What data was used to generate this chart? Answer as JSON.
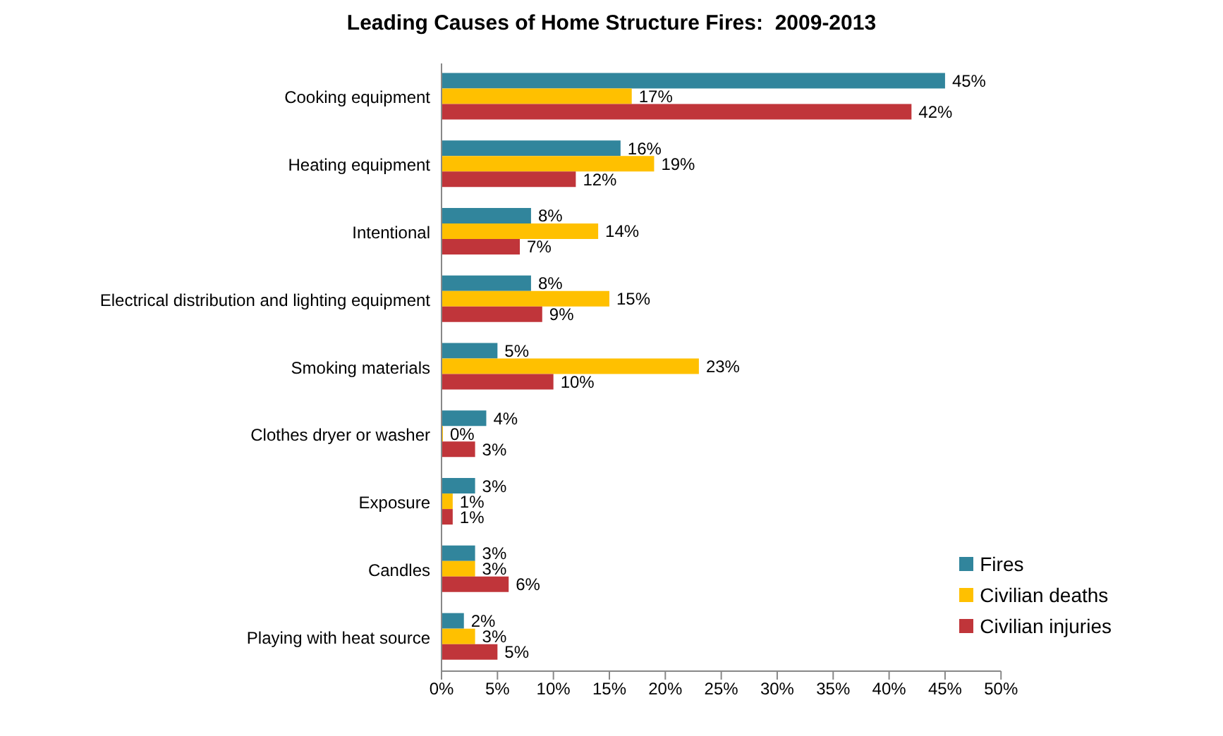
{
  "chart_data": {
    "type": "bar",
    "orientation": "horizontal",
    "title": "Leading Causes of Home Structure Fires:  2009-2013",
    "categories": [
      "Cooking equipment",
      "Heating equipment",
      "Intentional",
      "Electrical distribution and lighting equipment",
      "Smoking materials",
      "Clothes dryer or washer",
      "Exposure",
      "Candles",
      "Playing with heat source"
    ],
    "series": [
      {
        "name": "Fires",
        "color": "#31859c",
        "values": [
          45,
          16,
          8,
          8,
          5,
          4,
          3,
          3,
          2
        ],
        "value_labels": [
          "45%",
          "16%",
          "8%",
          "8%",
          "5%",
          "4%",
          "3%",
          "3%",
          "2%"
        ]
      },
      {
        "name": "Civilian deaths",
        "color": "#ffc000",
        "values": [
          17,
          19,
          14,
          15,
          23,
          0,
          1,
          3,
          3
        ],
        "value_labels": [
          "17%",
          "19%",
          "14%",
          "15%",
          "23%",
          "0%",
          "1%",
          "3%",
          "3%"
        ]
      },
      {
        "name": "Civilian injuries",
        "color": "#c0353a",
        "values": [
          42,
          12,
          7,
          9,
          10,
          3,
          1,
          6,
          5
        ],
        "value_labels": [
          "42%",
          "12%",
          "7%",
          "9%",
          "10%",
          "3%",
          "1%",
          "6%",
          "5%"
        ]
      }
    ],
    "xlim": [
      0,
      50
    ],
    "xticks": [
      {
        "value": 0,
        "label": "0%"
      },
      {
        "value": 5,
        "label": "5%"
      },
      {
        "value": 10,
        "label": "10%"
      },
      {
        "value": 15,
        "label": "15%"
      },
      {
        "value": 20,
        "label": "20%"
      },
      {
        "value": 25,
        "label": "25%"
      },
      {
        "value": 30,
        "label": "30%"
      },
      {
        "value": 35,
        "label": "35%"
      },
      {
        "value": 40,
        "label": "40%"
      },
      {
        "value": 45,
        "label": "45%"
      },
      {
        "value": 50,
        "label": "50%"
      }
    ],
    "grid": false,
    "legend": "bottom right"
  }
}
